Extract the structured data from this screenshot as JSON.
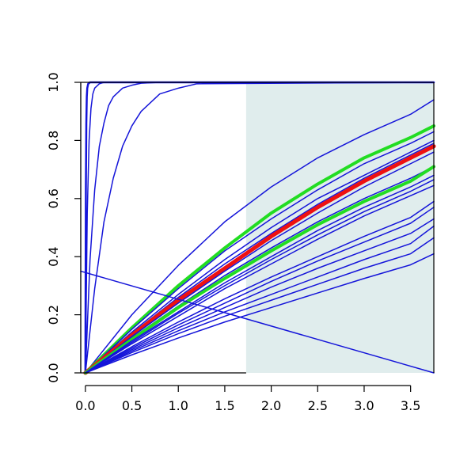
{
  "chart_data": {
    "type": "line",
    "title": "",
    "xlabel": "",
    "ylabel": "",
    "xlim": [
      -0.05,
      3.75
    ],
    "ylim": [
      0,
      1
    ],
    "x_ticks": [
      0,
      0.5,
      1,
      1.5,
      2,
      2.5,
      3,
      3.5
    ],
    "x_tick_labels": [
      "0.0",
      "0.5",
      "1.0",
      "1.5",
      "2.0",
      "2.5",
      "3.0",
      "3.5"
    ],
    "y_ticks": [
      0,
      0.2,
      0.4,
      0.6,
      0.8,
      1
    ],
    "y_tick_labels": [
      "0.0",
      "0.2",
      "0.4",
      "0.6",
      "0.8",
      "1.0"
    ],
    "grid": false,
    "legend": "none",
    "shaded_region": {
      "x_from": 1.73,
      "x_to": 3.75,
      "color": "#e0eded"
    },
    "colors": {
      "blue": "#1414d9",
      "green": "#22dd22",
      "red": "#ee1111"
    },
    "series": [
      {
        "color": "blue",
        "width": 2.5,
        "x": [
          0,
          0.005,
          0.01,
          0.015,
          0.02,
          0.03,
          0.05,
          0.08,
          0.15,
          3.75
        ],
        "y": [
          0,
          0.63,
          0.86,
          0.95,
          0.98,
          0.995,
          1,
          1,
          1,
          1
        ]
      },
      {
        "color": "blue",
        "width": 1.5,
        "x": [
          0,
          0.02,
          0.04,
          0.06,
          0.08,
          0.1,
          0.15,
          0.2,
          0.3,
          3.75
        ],
        "y": [
          0,
          0.55,
          0.8,
          0.91,
          0.96,
          0.98,
          0.995,
          1,
          1,
          1
        ]
      },
      {
        "color": "blue",
        "width": 1.5,
        "x": [
          0,
          0.05,
          0.1,
          0.15,
          0.2,
          0.25,
          0.3,
          0.4,
          0.5,
          0.6,
          0.8,
          3.75
        ],
        "y": [
          0,
          0.39,
          0.63,
          0.78,
          0.86,
          0.92,
          0.95,
          0.98,
          0.99,
          0.997,
          1,
          1
        ]
      },
      {
        "color": "blue",
        "width": 1.5,
        "x": [
          0,
          0.1,
          0.2,
          0.3,
          0.4,
          0.5,
          0.6,
          0.8,
          1.0,
          1.2,
          3.75
        ],
        "y": [
          0,
          0.29,
          0.52,
          0.67,
          0.78,
          0.85,
          0.9,
          0.96,
          0.98,
          0.995,
          1
        ]
      },
      {
        "color": "blue",
        "width": 1.5,
        "x": [
          0,
          0.5,
          1,
          1.5,
          2,
          2.5,
          3,
          3.5,
          3.75
        ],
        "y": [
          0,
          0.2,
          0.37,
          0.52,
          0.64,
          0.74,
          0.82,
          0.89,
          0.94
        ]
      },
      {
        "color": "green",
        "width": 4,
        "x": [
          0,
          0.5,
          1,
          1.5,
          2,
          2.5,
          3,
          3.5,
          3.75
        ],
        "y": [
          0,
          0.155,
          0.3,
          0.43,
          0.55,
          0.65,
          0.74,
          0.81,
          0.85
        ]
      },
      {
        "color": "blue",
        "width": 1.5,
        "x": [
          0,
          0.5,
          1,
          1.5,
          2,
          2.5,
          3,
          3.5,
          3.75
        ],
        "y": [
          0,
          0.15,
          0.29,
          0.42,
          0.53,
          0.63,
          0.72,
          0.79,
          0.83
        ]
      },
      {
        "color": "blue",
        "width": 1.5,
        "x": [
          0,
          0.5,
          1,
          1.5,
          2,
          2.5,
          3,
          3.5,
          3.75
        ],
        "y": [
          0,
          0.14,
          0.27,
          0.39,
          0.5,
          0.6,
          0.68,
          0.76,
          0.8
        ]
      },
      {
        "color": "blue",
        "width": 1.5,
        "x": [
          0,
          0.5,
          1,
          1.5,
          2,
          2.5,
          3,
          3.5,
          3.75
        ],
        "y": [
          0,
          0.135,
          0.26,
          0.375,
          0.48,
          0.58,
          0.67,
          0.75,
          0.79
        ]
      },
      {
        "color": "red",
        "width": 5,
        "x": [
          0,
          0.5,
          1,
          1.5,
          2,
          2.5,
          3,
          3.5,
          3.75
        ],
        "y": [
          0,
          0.13,
          0.25,
          0.36,
          0.47,
          0.57,
          0.66,
          0.74,
          0.78
        ]
      },
      {
        "color": "blue",
        "width": 1.5,
        "x": [
          0,
          0.5,
          1,
          1.5,
          2,
          2.5,
          3,
          3.5,
          3.75
        ],
        "y": [
          0,
          0.125,
          0.24,
          0.35,
          0.455,
          0.55,
          0.64,
          0.72,
          0.76
        ]
      },
      {
        "color": "blue",
        "width": 1.5,
        "x": [
          0,
          0.5,
          1,
          1.5,
          2,
          2.5,
          3,
          3.5,
          3.75
        ],
        "y": [
          0,
          0.12,
          0.23,
          0.335,
          0.43,
          0.52,
          0.6,
          0.67,
          0.71
        ]
      },
      {
        "color": "green",
        "width": 4,
        "x": [
          0,
          0.5,
          1,
          1.5,
          2,
          2.5,
          3,
          3.5,
          3.75
        ],
        "y": [
          0,
          0.115,
          0.225,
          0.325,
          0.42,
          0.51,
          0.59,
          0.66,
          0.71
        ]
      },
      {
        "color": "blue",
        "width": 1.5,
        "x": [
          0,
          0.5,
          1,
          1.5,
          2,
          2.5,
          3,
          3.5,
          3.75
        ],
        "y": [
          0,
          0.11,
          0.21,
          0.31,
          0.4,
          0.49,
          0.57,
          0.64,
          0.68
        ]
      },
      {
        "color": "blue",
        "width": 1.5,
        "x": [
          0,
          0.5,
          1,
          1.5,
          2,
          2.5,
          3,
          3.5,
          3.75
        ],
        "y": [
          0,
          0.105,
          0.205,
          0.3,
          0.39,
          0.475,
          0.555,
          0.625,
          0.665
        ]
      },
      {
        "color": "blue",
        "width": 1.5,
        "x": [
          0,
          0.5,
          1,
          1.5,
          2,
          2.5,
          3,
          3.5,
          3.75
        ],
        "y": [
          0,
          0.1,
          0.195,
          0.29,
          0.375,
          0.46,
          0.54,
          0.61,
          0.645
        ]
      },
      {
        "color": "blue",
        "width": 1.5,
        "x": [
          0,
          0.5,
          1,
          1.5,
          2,
          2.5,
          3,
          3.5,
          3.75
        ],
        "y": [
          0,
          0.09,
          0.175,
          0.255,
          0.33,
          0.4,
          0.47,
          0.535,
          0.59
        ]
      },
      {
        "color": "blue",
        "width": 1.5,
        "x": [
          0,
          0.5,
          1,
          1.5,
          2,
          2.5,
          3,
          3.5,
          3.75
        ],
        "y": [
          0,
          0.085,
          0.165,
          0.24,
          0.315,
          0.385,
          0.45,
          0.515,
          0.57
        ]
      },
      {
        "color": "blue",
        "width": 1.5,
        "x": [
          0,
          0.5,
          1,
          1.5,
          2,
          2.5,
          3,
          3.5,
          3.75
        ],
        "y": [
          0,
          0.08,
          0.155,
          0.225,
          0.295,
          0.36,
          0.42,
          0.48,
          0.53
        ]
      },
      {
        "color": "blue",
        "width": 1.5,
        "x": [
          0,
          0.5,
          1,
          1.5,
          2,
          2.5,
          3,
          3.5,
          3.75
        ],
        "y": [
          0,
          0.075,
          0.145,
          0.21,
          0.27,
          0.33,
          0.39,
          0.445,
          0.505
        ]
      },
      {
        "color": "blue",
        "width": 1.5,
        "x": [
          0,
          0.5,
          1,
          1.5,
          2,
          2.5,
          3,
          3.5,
          3.75
        ],
        "y": [
          0,
          0.07,
          0.135,
          0.195,
          0.25,
          0.305,
          0.36,
          0.41,
          0.465
        ]
      },
      {
        "color": "blue",
        "width": 1.5,
        "x": [
          0,
          0.5,
          1,
          1.5,
          2,
          2.5,
          3,
          3.5,
          3.75
        ],
        "y": [
          0,
          0.062,
          0.12,
          0.175,
          0.225,
          0.275,
          0.325,
          0.372,
          0.41
        ]
      },
      {
        "color": "blue",
        "width": 1.5,
        "x": [
          -0.05,
          3.75
        ],
        "y": [
          0.35,
          0
        ]
      }
    ]
  }
}
